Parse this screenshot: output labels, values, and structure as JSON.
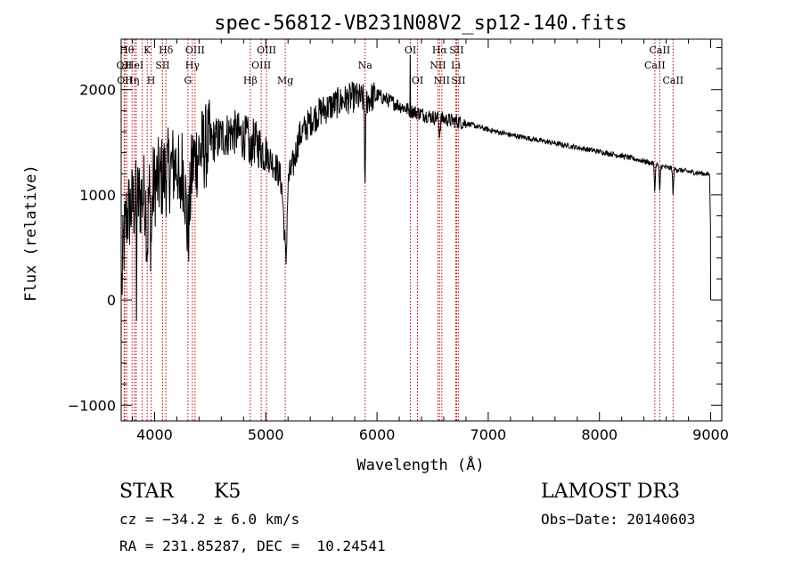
{
  "chart_data": {
    "type": "line",
    "title": "spec-56812-VB231N08V2_sp12-140.fits",
    "xlabel": "Wavelength (Å)",
    "ylabel": "Flux (relative)",
    "xlim": [
      3700,
      9100
    ],
    "ylim": [
      -1150,
      2480
    ],
    "x_ticks": [
      4000,
      5000,
      6000,
      7000,
      8000,
      9000
    ],
    "x_tick_labels": [
      "4000",
      "5000",
      "6000",
      "7000",
      "8000",
      "9000"
    ],
    "y_ticks": [
      -1000,
      0,
      1000,
      2000
    ],
    "y_tick_labels": [
      "−1000",
      "0",
      "1000",
      "2000"
    ],
    "x_minor_step": 200,
    "y_minor_step": 200,
    "line_color": "#000000",
    "marker_color": "#c00000",
    "continuum": [
      {
        "x": 3700,
        "y": 0
      },
      {
        "x": 3720,
        "y": 500
      },
      {
        "x": 3750,
        "y": 800
      },
      {
        "x": 3800,
        "y": 900
      },
      {
        "x": 3850,
        "y": 950
      },
      {
        "x": 3900,
        "y": 1000
      },
      {
        "x": 3950,
        "y": 1050
      },
      {
        "x": 4000,
        "y": 1100
      },
      {
        "x": 4100,
        "y": 1200
      },
      {
        "x": 4200,
        "y": 1300
      },
      {
        "x": 4300,
        "y": 1250
      },
      {
        "x": 4400,
        "y": 1400
      },
      {
        "x": 4500,
        "y": 1500
      },
      {
        "x": 4600,
        "y": 1550
      },
      {
        "x": 4700,
        "y": 1600
      },
      {
        "x": 4800,
        "y": 1550
      },
      {
        "x": 4900,
        "y": 1500
      },
      {
        "x": 5000,
        "y": 1400
      },
      {
        "x": 5100,
        "y": 1250
      },
      {
        "x": 5170,
        "y": 1050
      },
      {
        "x": 5250,
        "y": 1300
      },
      {
        "x": 5300,
        "y": 1550
      },
      {
        "x": 5400,
        "y": 1700
      },
      {
        "x": 5500,
        "y": 1800
      },
      {
        "x": 5600,
        "y": 1850
      },
      {
        "x": 5700,
        "y": 1900
      },
      {
        "x": 5800,
        "y": 1930
      },
      {
        "x": 5900,
        "y": 1900
      },
      {
        "x": 6000,
        "y": 1950
      },
      {
        "x": 6100,
        "y": 1900
      },
      {
        "x": 6200,
        "y": 1850
      },
      {
        "x": 6300,
        "y": 1800
      },
      {
        "x": 6400,
        "y": 1770
      },
      {
        "x": 6500,
        "y": 1740
      },
      {
        "x": 6600,
        "y": 1720
      },
      {
        "x": 6700,
        "y": 1700
      },
      {
        "x": 6800,
        "y": 1680
      },
      {
        "x": 7000,
        "y": 1620
      },
      {
        "x": 7200,
        "y": 1570
      },
      {
        "x": 7400,
        "y": 1530
      },
      {
        "x": 7600,
        "y": 1490
      },
      {
        "x": 7800,
        "y": 1450
      },
      {
        "x": 8000,
        "y": 1410
      },
      {
        "x": 8200,
        "y": 1370
      },
      {
        "x": 8400,
        "y": 1320
      },
      {
        "x": 8600,
        "y": 1260
      },
      {
        "x": 8800,
        "y": 1220
      },
      {
        "x": 8950,
        "y": 1200
      },
      {
        "x": 9000,
        "y": 1190
      }
    ],
    "absorption_features": [
      {
        "x": 3934,
        "depth": 500,
        "width": 10
      },
      {
        "x": 3969,
        "depth": 500,
        "width": 10
      },
      {
        "x": 4227,
        "depth": 400,
        "width": 10
      },
      {
        "x": 4300,
        "depth": 600,
        "width": 25
      },
      {
        "x": 4861,
        "depth": 200,
        "width": 10
      },
      {
        "x": 5172,
        "depth": 400,
        "width": 20
      },
      {
        "x": 5183,
        "depth": 400,
        "width": 10
      },
      {
        "x": 5893,
        "depth": 850,
        "width": 6
      },
      {
        "x": 6563,
        "depth": 150,
        "width": 8
      },
      {
        "x": 8498,
        "depth": 250,
        "width": 6
      },
      {
        "x": 8542,
        "depth": 250,
        "width": 6
      },
      {
        "x": 8662,
        "depth": 250,
        "width": 6
      }
    ],
    "spikes": [
      {
        "x": 6300,
        "y": 2330
      },
      {
        "x": 3838,
        "y": -200
      }
    ],
    "end_drop": [
      {
        "x": 8990,
        "y": 1180
      },
      {
        "x": 8998,
        "y": 700
      },
      {
        "x": 9000,
        "y": 0
      }
    ],
    "noise": [
      {
        "to": 4500,
        "amp": 420
      },
      {
        "to": 5000,
        "amp": 220
      },
      {
        "to": 6000,
        "amp": 150
      },
      {
        "to": 6800,
        "amp": 70
      },
      {
        "to": 9100,
        "amp": 25
      }
    ],
    "line_markers": [
      {
        "x": 3727,
        "label": "OII",
        "row": 1
      },
      {
        "x": 3733,
        "label": "OII",
        "row": 2
      },
      {
        "x": 3750,
        "label": "Hθ",
        "row": 0
      },
      {
        "x": 3798,
        "label": "Hη",
        "row": 2
      },
      {
        "x": 3820,
        "label": "HeI",
        "row": 1
      },
      {
        "x": 3835,
        "label": "",
        "row": 0
      },
      {
        "x": 3889,
        "label": "",
        "row": 0
      },
      {
        "x": 3934,
        "label": "K",
        "row": 0
      },
      {
        "x": 3969,
        "label": "H",
        "row": 2
      },
      {
        "x": 4072,
        "label": "SII",
        "row": 1
      },
      {
        "x": 4102,
        "label": "Hδ",
        "row": 0
      },
      {
        "x": 4300,
        "label": "G",
        "row": 2
      },
      {
        "x": 4340,
        "label": "Hγ",
        "row": 1
      },
      {
        "x": 4364,
        "label": "OIII",
        "row": 0
      },
      {
        "x": 4861,
        "label": "Hβ",
        "row": 2
      },
      {
        "x": 4959,
        "label": "OIII",
        "row": 1
      },
      {
        "x": 5007,
        "label": "OIII",
        "row": 0
      },
      {
        "x": 5175,
        "label": "Mg",
        "row": 2
      },
      {
        "x": 5893,
        "label": "Na",
        "row": 1
      },
      {
        "x": 6300,
        "label": "OI",
        "row": 0
      },
      {
        "x": 6364,
        "label": "OI",
        "row": 2
      },
      {
        "x": 6548,
        "label": "NII",
        "row": 1
      },
      {
        "x": 6563,
        "label": "Hα",
        "row": 0
      },
      {
        "x": 6583,
        "label": "NII",
        "row": 2
      },
      {
        "x": 6708,
        "label": "Li",
        "row": 1
      },
      {
        "x": 6716,
        "label": "SII",
        "row": 0
      },
      {
        "x": 6731,
        "label": "SII",
        "row": 2
      },
      {
        "x": 8498,
        "label": "CaII",
        "row": 1
      },
      {
        "x": 8542,
        "label": "CaII",
        "row": 0
      },
      {
        "x": 8662,
        "label": "CaII",
        "row": 2
      }
    ]
  },
  "info": {
    "object_class": "STAR",
    "subclass": "K5",
    "survey": "LAMOST DR3",
    "redshift": "cz = −34.2 ± 6.0 km/s",
    "obs_date": "Obs−Date: 20140603",
    "coordinates": "RA = 231.85287, DEC =  10.24541"
  }
}
